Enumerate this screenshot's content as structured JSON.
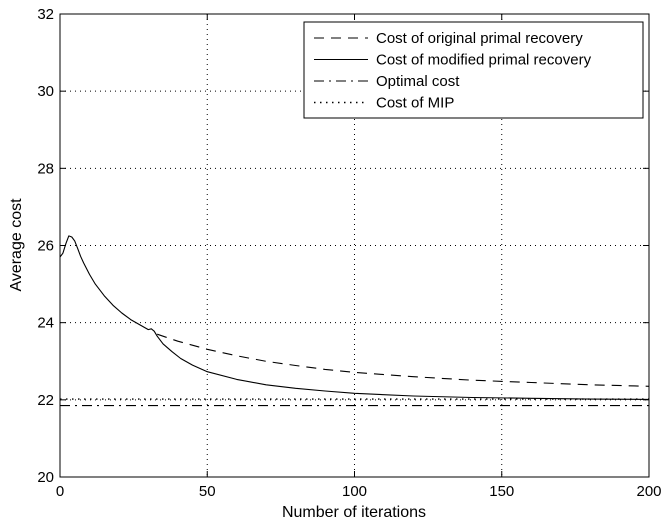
{
  "chart_data": {
    "type": "line",
    "xlabel": "Number of iterations",
    "ylabel": "Average cost",
    "xlim": [
      0,
      200
    ],
    "ylim": [
      20,
      32
    ],
    "xticks": [
      0,
      50,
      100,
      150,
      200
    ],
    "yticks": [
      20,
      22,
      24,
      26,
      28,
      30,
      32
    ],
    "grid": true,
    "legend": "top-right",
    "series": [
      {
        "name": "Cost of original primal recovery",
        "style": "dashed",
        "x": [
          33,
          40,
          50,
          60,
          70,
          80,
          90,
          100,
          120,
          140,
          160,
          180,
          200
        ],
        "y": [
          23.7,
          23.52,
          23.31,
          23.14,
          23.0,
          22.89,
          22.79,
          22.71,
          22.6,
          22.51,
          22.45,
          22.39,
          22.35
        ]
      },
      {
        "name": "Cost of modified primal recovery",
        "style": "solid",
        "x": [
          0,
          1,
          2,
          3,
          4,
          5,
          6,
          7,
          8,
          10,
          12,
          15,
          18,
          21,
          24,
          27,
          30,
          31,
          32,
          33,
          35,
          38,
          41,
          45,
          50,
          60,
          70,
          80,
          90,
          100,
          120,
          140,
          160,
          180,
          200
        ],
        "y": [
          25.7,
          25.8,
          26.05,
          26.25,
          26.22,
          26.12,
          25.92,
          25.72,
          25.55,
          25.25,
          25.0,
          24.7,
          24.45,
          24.25,
          24.08,
          23.95,
          23.82,
          23.84,
          23.78,
          23.65,
          23.45,
          23.25,
          23.07,
          22.9,
          22.73,
          22.53,
          22.39,
          22.3,
          22.23,
          22.17,
          22.1,
          22.06,
          22.04,
          22.02,
          22.01
        ]
      },
      {
        "name": "Optimal cost",
        "style": "dashdot",
        "x": [
          0,
          200
        ],
        "y": [
          21.85,
          21.85
        ]
      },
      {
        "name": "Cost of MIP",
        "style": "dotted",
        "x": [
          0,
          200
        ],
        "y": [
          22.02,
          22.02
        ]
      }
    ]
  },
  "colors": {
    "line": "#000000",
    "grid": "#000000",
    "background": "#ffffff"
  }
}
